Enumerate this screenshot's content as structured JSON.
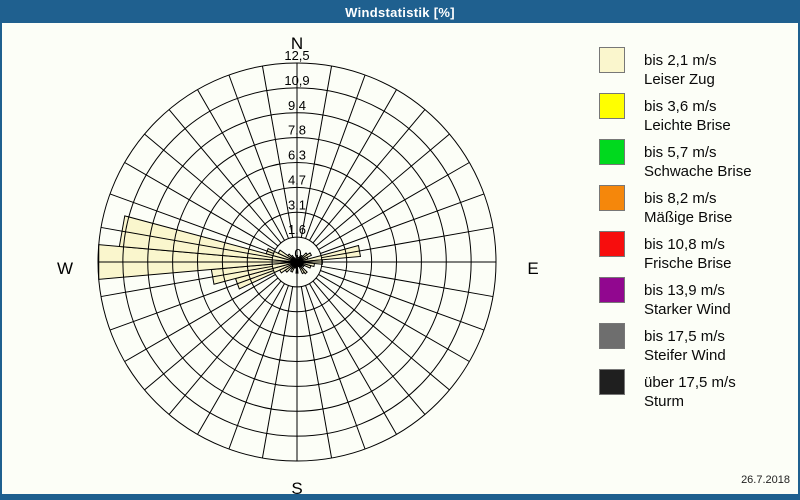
{
  "window": {
    "title": "Windstatistik [%]",
    "date": "26.7.2018"
  },
  "colors": {
    "titlebar": "#1F608F",
    "border": "#1F608F",
    "background": "#FCFEF7",
    "grid": "#000000",
    "petal_fill": "#FAF6CD",
    "petal_stroke": "#000000",
    "label_text": "#000000"
  },
  "chart_data": {
    "type": "wind-rose",
    "title": "Windstatistik [%]",
    "units": "percent",
    "direction_step_deg": 10,
    "directions_deg": [
      0,
      10,
      20,
      30,
      40,
      50,
      60,
      70,
      80,
      90,
      100,
      110,
      120,
      130,
      140,
      150,
      160,
      170,
      180,
      190,
      200,
      210,
      220,
      230,
      240,
      250,
      260,
      270,
      280,
      290,
      300,
      310,
      320,
      330,
      340,
      350
    ],
    "values_percent": [
      0.4,
      0.2,
      0.2,
      0.3,
      0.5,
      0.8,
      1.0,
      0.7,
      4.0,
      1.6,
      1.1,
      0.9,
      0.5,
      0.4,
      0.9,
      0.8,
      0.3,
      0.2,
      0.7,
      0.3,
      0.4,
      0.7,
      0.5,
      0.9,
      1.2,
      4.0,
      5.4,
      12.5,
      11.2,
      2.0,
      1.3,
      0.7,
      0.5,
      0.3,
      0.2,
      0.2
    ],
    "petal_speed_class": "bis 2,1 m/s (Leiser Zug)",
    "radial_axis": {
      "min": 0,
      "max": 12.5,
      "rings": 8,
      "center_label": "0",
      "tick_labels": [
        "1,6",
        "3,1",
        "4,7",
        "6,3",
        "7,8",
        "9,4",
        "10,9",
        "12,5"
      ]
    },
    "compass_labels": {
      "north": "N",
      "east": "E",
      "south": "S",
      "west": "W"
    },
    "grid": {
      "circles": 8,
      "spokes_every_deg": 10,
      "legend_position": "right"
    },
    "speed_classes": [
      {
        "speed": "bis 2,1 m/s",
        "name": "Leiser Zug",
        "color": "#FAF6CD",
        "speckled": false
      },
      {
        "speed": "bis 3,6 m/s",
        "name": "Leichte Brise",
        "color": "#FFFF00",
        "speckled": false
      },
      {
        "speed": "bis 5,7 m/s",
        "name": "Schwache Brise",
        "color": "#00D91E",
        "speckled": false
      },
      {
        "speed": "bis 8,2 m/s",
        "name": "Mäßige Brise",
        "color": "#F5870B",
        "speckled": false
      },
      {
        "speed": "bis 10,8 m/s",
        "name": "Frische Brise",
        "color": "#F70D0D",
        "speckled": false
      },
      {
        "speed": "bis 13,9 m/s",
        "name": "Starker Wind",
        "color": "#91078F",
        "speckled": false
      },
      {
        "speed": "bis 17,5 m/s",
        "name": "Steifer Wind",
        "color": "#6E6E6E",
        "speckled": false
      },
      {
        "speed": "über 17,5 m/s",
        "name": "Sturm",
        "color": "#1F1F1F",
        "speckled": true
      }
    ]
  }
}
